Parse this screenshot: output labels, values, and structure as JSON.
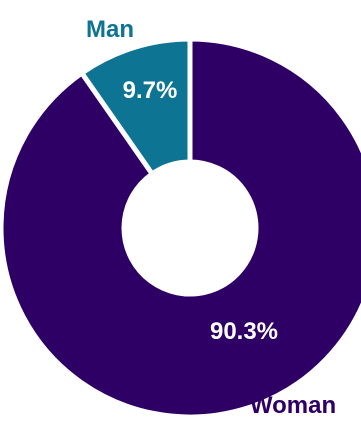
{
  "chart_data": {
    "type": "pie",
    "donut": true,
    "categories": [
      "Woman",
      "Man"
    ],
    "values": [
      90.3,
      9.7
    ],
    "value_labels": [
      "90.3%",
      "9.7%"
    ],
    "colors": [
      "#2e0066",
      "#0e7494"
    ],
    "separator_color": "#ffffff",
    "background": "#ffffff",
    "start_angle_deg": 0,
    "direction": "clockwise",
    "title": "",
    "legend": "none"
  }
}
